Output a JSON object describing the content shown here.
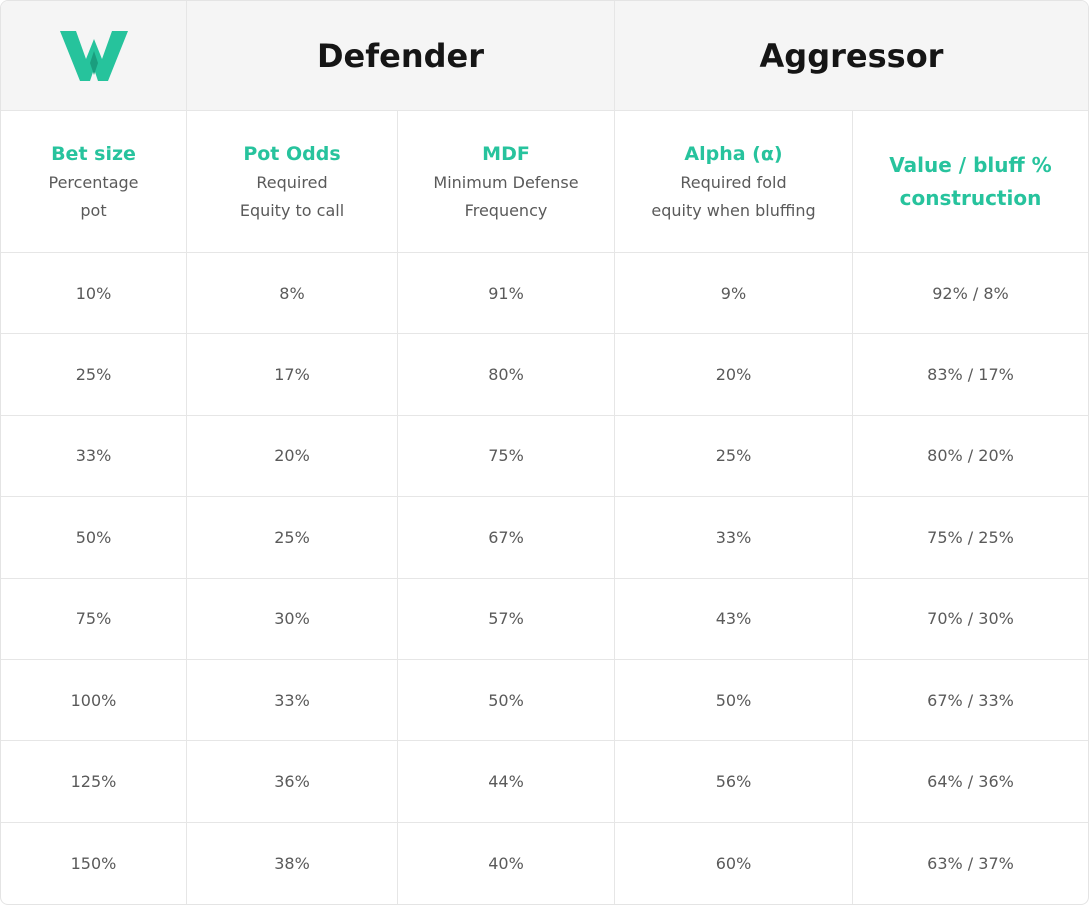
{
  "header": {
    "groups": [
      "Defender",
      "Aggressor"
    ]
  },
  "columns": [
    {
      "title": [
        "Bet size"
      ],
      "subtitle": [
        "Percentage",
        "pot"
      ]
    },
    {
      "title": [
        "Pot Odds"
      ],
      "subtitle": [
        "Required",
        "Equity to call"
      ]
    },
    {
      "title": [
        "MDF"
      ],
      "subtitle": [
        "Minimum Defense",
        "Frequency"
      ]
    },
    {
      "title": [
        "Alpha (α)"
      ],
      "subtitle": [
        "Required fold",
        "equity when bluffing"
      ]
    },
    {
      "title": [
        "Value / bluff %",
        "construction"
      ],
      "subtitle": []
    }
  ],
  "table": {
    "rows": [
      [
        "10%",
        "8%",
        "91%",
        "9%",
        "92% / 8%"
      ],
      [
        "25%",
        "17%",
        "80%",
        "20%",
        "83% / 17%"
      ],
      [
        "33%",
        "20%",
        "75%",
        "25%",
        "80% / 20%"
      ],
      [
        "50%",
        "25%",
        "67%",
        "33%",
        "75% / 25%"
      ],
      [
        "75%",
        "30%",
        "57%",
        "43%",
        "70% / 30%"
      ],
      [
        "100%",
        "33%",
        "50%",
        "50%",
        "67% / 33%"
      ],
      [
        "125%",
        "36%",
        "44%",
        "56%",
        "64% / 36%"
      ],
      [
        "150%",
        "38%",
        "40%",
        "60%",
        "63% / 37%"
      ]
    ]
  }
}
